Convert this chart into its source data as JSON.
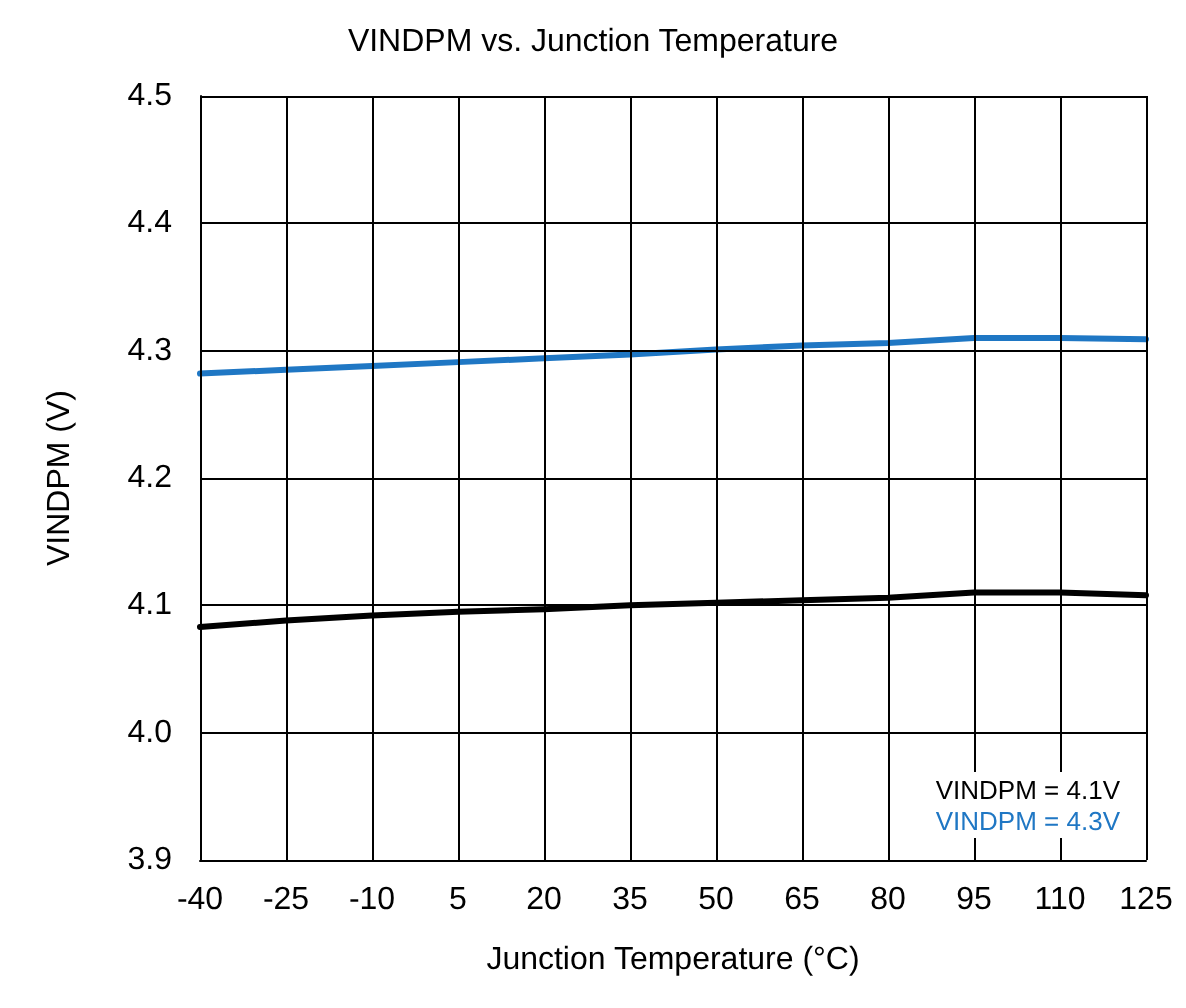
{
  "chart_data": {
    "type": "line",
    "title": "VINDPM vs. Junction Temperature",
    "xlabel": "Junction Temperature (°C)",
    "ylabel": "VINDPM (V)",
    "x": [
      -40,
      -25,
      -10,
      5,
      20,
      35,
      50,
      65,
      80,
      95,
      110,
      125
    ],
    "series": [
      {
        "name": "VINDPM = 4.1V",
        "color": "#000000",
        "values": [
          4.083,
          4.088,
          4.092,
          4.095,
          4.097,
          4.1,
          4.102,
          4.104,
          4.106,
          4.11,
          4.11,
          4.108
        ]
      },
      {
        "name": "VINDPM = 4.3V",
        "color": "#1f77c4",
        "values": [
          4.282,
          4.285,
          4.288,
          4.291,
          4.294,
          4.297,
          4.301,
          4.304,
          4.306,
          4.31,
          4.31,
          4.309
        ]
      }
    ],
    "xlim": [
      -40,
      125
    ],
    "xticks": [
      -40,
      -25,
      -10,
      5,
      20,
      35,
      50,
      65,
      80,
      95,
      110,
      125
    ],
    "ylim": [
      3.9,
      4.5
    ],
    "yticks": [
      {
        "value": 3.9,
        "label": "3.9"
      },
      {
        "value": 4.0,
        "label": "4.0"
      },
      {
        "value": 4.1,
        "label": "4.1"
      },
      {
        "value": 4.2,
        "label": "4.2"
      },
      {
        "value": 4.3,
        "label": "4.3"
      },
      {
        "value": 4.4,
        "label": "4.4"
      },
      {
        "value": 4.5,
        "label": "4.5"
      }
    ],
    "grid": true,
    "legend": "bottom right",
    "marker": "none",
    "line_style": "solid"
  }
}
